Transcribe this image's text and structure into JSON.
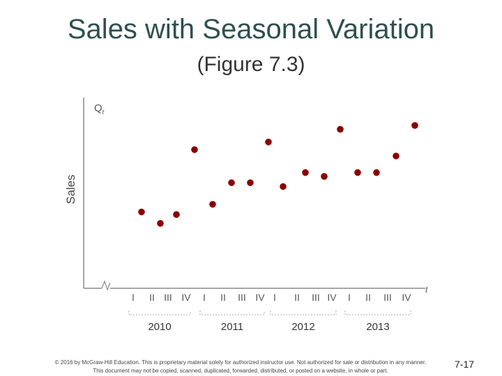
{
  "slide": {
    "title": "Sales with Seasonal Variation",
    "subtitle": "(Figure 7.3)",
    "footer_line1": "© 2016 by McGraw-Hill Education. This is proprietary material solely for authorized instructor use. Not authorized for sale or distribution in any manner.",
    "footer_line2": "This document may not be copied, scanned, duplicated, forwarded, distributed, or posted on a website, in whole or part.",
    "slide_number": "7-17"
  },
  "chart_data": {
    "type": "scatter",
    "ylabel": "Sales",
    "y_axis_symbol": "Q",
    "y_axis_symbol_sub": "t",
    "x_axis_symbol": "t",
    "quarters": [
      "I",
      "II",
      "III",
      "IV",
      "I",
      "II",
      "III",
      "IV",
      "I",
      "II",
      "III",
      "IV",
      "I",
      "II",
      "III",
      "IV"
    ],
    "years": [
      "2010",
      "2011",
      "2012",
      "2013"
    ],
    "x": [
      1,
      2,
      3,
      4,
      5,
      6,
      7,
      8,
      9,
      10,
      11,
      12,
      13,
      14,
      15,
      16
    ],
    "values": [
      120,
      102,
      116,
      218,
      132,
      166,
      166,
      230,
      160,
      182,
      176,
      250,
      182,
      182,
      208,
      256
    ],
    "ylim": [
      0,
      300
    ],
    "point_color": "#8b0000",
    "grid": false
  }
}
